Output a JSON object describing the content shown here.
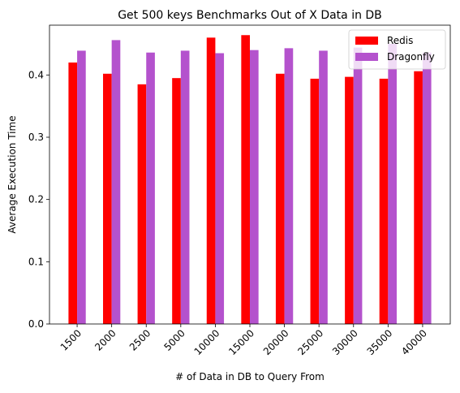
{
  "chart_data": {
    "type": "bar",
    "title": "Get 500 keys Benchmarks Out of X Data in DB",
    "xlabel": "# of Data in DB to Query From",
    "ylabel": "Average Execution Time",
    "categories": [
      "1500",
      "2000",
      "2500",
      "5000",
      "10000",
      "15000",
      "20000",
      "25000",
      "30000",
      "35000",
      "40000"
    ],
    "series": [
      {
        "name": "Redis",
        "color": "#ff0000",
        "values": [
          0.42,
          0.402,
          0.385,
          0.395,
          0.46,
          0.464,
          0.402,
          0.394,
          0.397,
          0.394,
          0.406
        ]
      },
      {
        "name": "Dragonfly",
        "color": "#b452cd",
        "values": [
          0.439,
          0.456,
          0.436,
          0.439,
          0.435,
          0.44,
          0.443,
          0.439,
          0.444,
          0.45,
          0.436
        ]
      }
    ],
    "ylim": [
      0,
      0.48
    ],
    "yticks": [
      0.0,
      0.1,
      0.2,
      0.3,
      0.4
    ],
    "ytick_labels": [
      "0.0",
      "0.1",
      "0.2",
      "0.3",
      "0.4"
    ],
    "legend_position": "top-right",
    "grid": false
  }
}
